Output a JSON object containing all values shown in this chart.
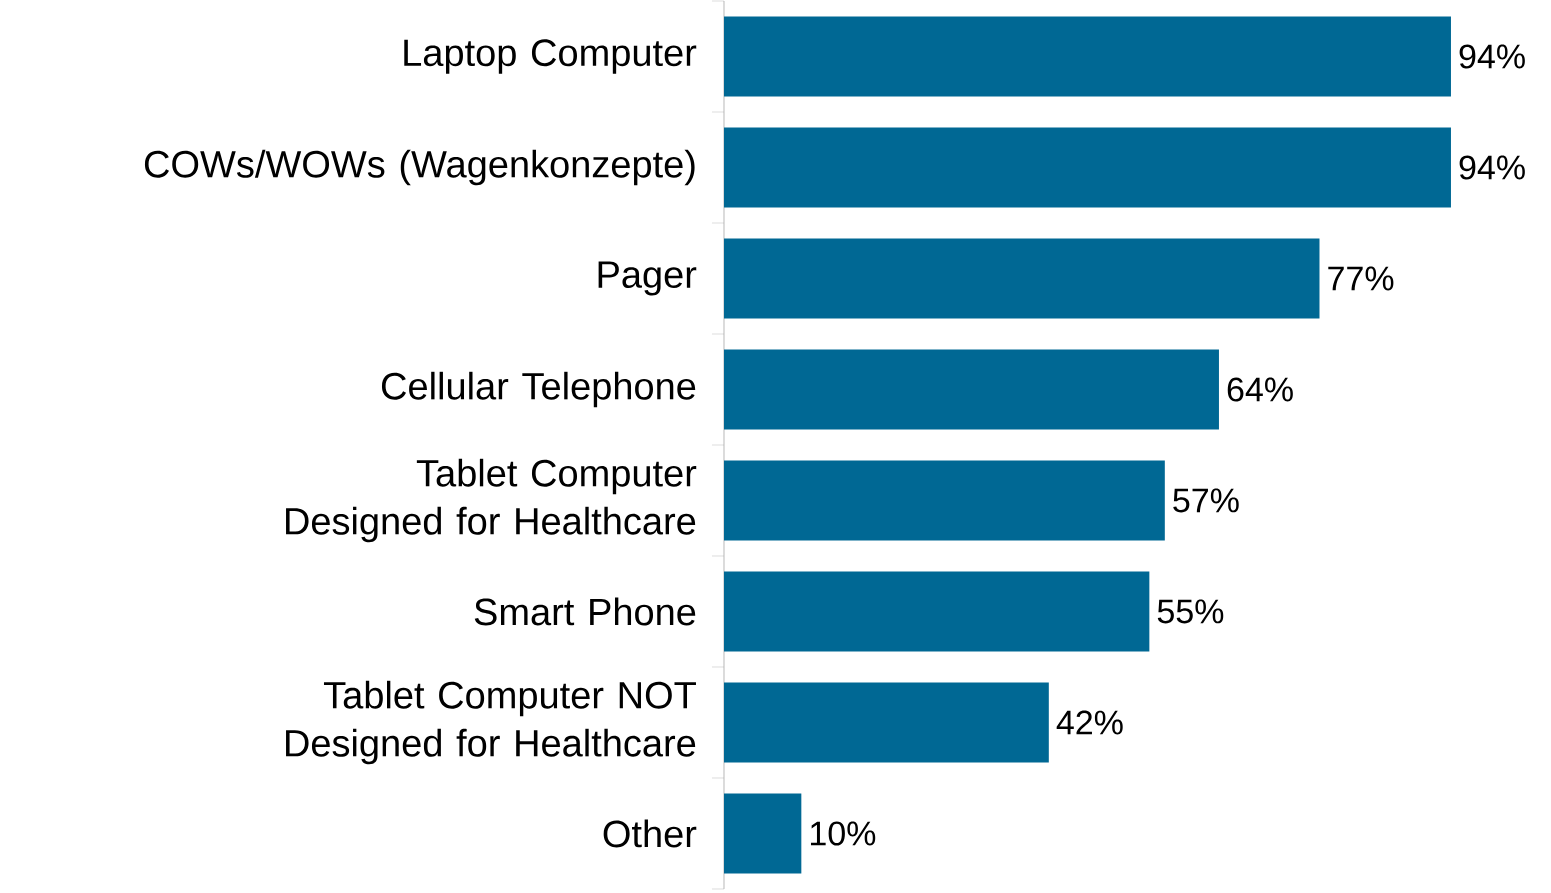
{
  "chart_data": {
    "type": "bar",
    "orientation": "horizontal",
    "color": "#006894",
    "categories": [
      "Laptop Computer",
      "COWs/WOWs (Wagenkonzepte)",
      "Pager",
      "Cellular Telephone",
      "Tablet Computer Designed for Healthcare",
      "Smart Phone",
      "Tablet Computer NOT Designed for Healthcare",
      "Other"
    ],
    "values": [
      94,
      94,
      77,
      64,
      57,
      55,
      42,
      10
    ],
    "value_labels": [
      "94%",
      "94%",
      "77%",
      "64%",
      "57%",
      "55%",
      "42%",
      "10%"
    ]
  }
}
